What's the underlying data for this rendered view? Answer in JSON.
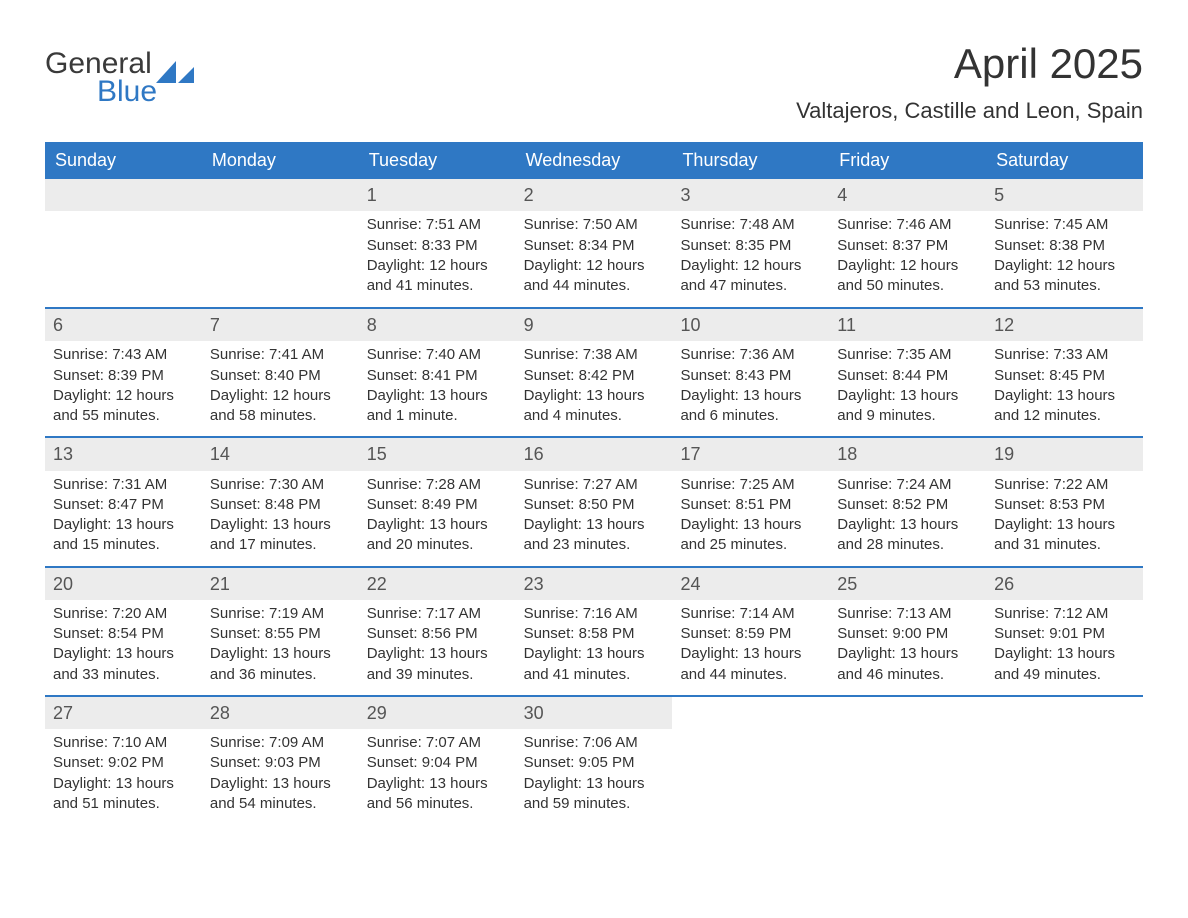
{
  "logo": {
    "text_general": "General",
    "text_blue": "Blue",
    "triangle_color": "#2f78c4"
  },
  "title": "April 2025",
  "location": "Valtajeros, Castille and Leon, Spain",
  "colors": {
    "header_bg": "#2f78c4",
    "header_text": "#ffffff",
    "daynum_bg": "#ececec",
    "row_border": "#2f78c4",
    "body_text": "#333333",
    "background": "#ffffff"
  },
  "day_names": [
    "Sunday",
    "Monday",
    "Tuesday",
    "Wednesday",
    "Thursday",
    "Friday",
    "Saturday"
  ],
  "weeks": [
    [
      null,
      null,
      {
        "n": "1",
        "sunrise": "Sunrise: 7:51 AM",
        "sunset": "Sunset: 8:33 PM",
        "d1": "Daylight: 12 hours",
        "d2": "and 41 minutes."
      },
      {
        "n": "2",
        "sunrise": "Sunrise: 7:50 AM",
        "sunset": "Sunset: 8:34 PM",
        "d1": "Daylight: 12 hours",
        "d2": "and 44 minutes."
      },
      {
        "n": "3",
        "sunrise": "Sunrise: 7:48 AM",
        "sunset": "Sunset: 8:35 PM",
        "d1": "Daylight: 12 hours",
        "d2": "and 47 minutes."
      },
      {
        "n": "4",
        "sunrise": "Sunrise: 7:46 AM",
        "sunset": "Sunset: 8:37 PM",
        "d1": "Daylight: 12 hours",
        "d2": "and 50 minutes."
      },
      {
        "n": "5",
        "sunrise": "Sunrise: 7:45 AM",
        "sunset": "Sunset: 8:38 PM",
        "d1": "Daylight: 12 hours",
        "d2": "and 53 minutes."
      }
    ],
    [
      {
        "n": "6",
        "sunrise": "Sunrise: 7:43 AM",
        "sunset": "Sunset: 8:39 PM",
        "d1": "Daylight: 12 hours",
        "d2": "and 55 minutes."
      },
      {
        "n": "7",
        "sunrise": "Sunrise: 7:41 AM",
        "sunset": "Sunset: 8:40 PM",
        "d1": "Daylight: 12 hours",
        "d2": "and 58 minutes."
      },
      {
        "n": "8",
        "sunrise": "Sunrise: 7:40 AM",
        "sunset": "Sunset: 8:41 PM",
        "d1": "Daylight: 13 hours",
        "d2": "and 1 minute."
      },
      {
        "n": "9",
        "sunrise": "Sunrise: 7:38 AM",
        "sunset": "Sunset: 8:42 PM",
        "d1": "Daylight: 13 hours",
        "d2": "and 4 minutes."
      },
      {
        "n": "10",
        "sunrise": "Sunrise: 7:36 AM",
        "sunset": "Sunset: 8:43 PM",
        "d1": "Daylight: 13 hours",
        "d2": "and 6 minutes."
      },
      {
        "n": "11",
        "sunrise": "Sunrise: 7:35 AM",
        "sunset": "Sunset: 8:44 PM",
        "d1": "Daylight: 13 hours",
        "d2": "and 9 minutes."
      },
      {
        "n": "12",
        "sunrise": "Sunrise: 7:33 AM",
        "sunset": "Sunset: 8:45 PM",
        "d1": "Daylight: 13 hours",
        "d2": "and 12 minutes."
      }
    ],
    [
      {
        "n": "13",
        "sunrise": "Sunrise: 7:31 AM",
        "sunset": "Sunset: 8:47 PM",
        "d1": "Daylight: 13 hours",
        "d2": "and 15 minutes."
      },
      {
        "n": "14",
        "sunrise": "Sunrise: 7:30 AM",
        "sunset": "Sunset: 8:48 PM",
        "d1": "Daylight: 13 hours",
        "d2": "and 17 minutes."
      },
      {
        "n": "15",
        "sunrise": "Sunrise: 7:28 AM",
        "sunset": "Sunset: 8:49 PM",
        "d1": "Daylight: 13 hours",
        "d2": "and 20 minutes."
      },
      {
        "n": "16",
        "sunrise": "Sunrise: 7:27 AM",
        "sunset": "Sunset: 8:50 PM",
        "d1": "Daylight: 13 hours",
        "d2": "and 23 minutes."
      },
      {
        "n": "17",
        "sunrise": "Sunrise: 7:25 AM",
        "sunset": "Sunset: 8:51 PM",
        "d1": "Daylight: 13 hours",
        "d2": "and 25 minutes."
      },
      {
        "n": "18",
        "sunrise": "Sunrise: 7:24 AM",
        "sunset": "Sunset: 8:52 PM",
        "d1": "Daylight: 13 hours",
        "d2": "and 28 minutes."
      },
      {
        "n": "19",
        "sunrise": "Sunrise: 7:22 AM",
        "sunset": "Sunset: 8:53 PM",
        "d1": "Daylight: 13 hours",
        "d2": "and 31 minutes."
      }
    ],
    [
      {
        "n": "20",
        "sunrise": "Sunrise: 7:20 AM",
        "sunset": "Sunset: 8:54 PM",
        "d1": "Daylight: 13 hours",
        "d2": "and 33 minutes."
      },
      {
        "n": "21",
        "sunrise": "Sunrise: 7:19 AM",
        "sunset": "Sunset: 8:55 PM",
        "d1": "Daylight: 13 hours",
        "d2": "and 36 minutes."
      },
      {
        "n": "22",
        "sunrise": "Sunrise: 7:17 AM",
        "sunset": "Sunset: 8:56 PM",
        "d1": "Daylight: 13 hours",
        "d2": "and 39 minutes."
      },
      {
        "n": "23",
        "sunrise": "Sunrise: 7:16 AM",
        "sunset": "Sunset: 8:58 PM",
        "d1": "Daylight: 13 hours",
        "d2": "and 41 minutes."
      },
      {
        "n": "24",
        "sunrise": "Sunrise: 7:14 AM",
        "sunset": "Sunset: 8:59 PM",
        "d1": "Daylight: 13 hours",
        "d2": "and 44 minutes."
      },
      {
        "n": "25",
        "sunrise": "Sunrise: 7:13 AM",
        "sunset": "Sunset: 9:00 PM",
        "d1": "Daylight: 13 hours",
        "d2": "and 46 minutes."
      },
      {
        "n": "26",
        "sunrise": "Sunrise: 7:12 AM",
        "sunset": "Sunset: 9:01 PM",
        "d1": "Daylight: 13 hours",
        "d2": "and 49 minutes."
      }
    ],
    [
      {
        "n": "27",
        "sunrise": "Sunrise: 7:10 AM",
        "sunset": "Sunset: 9:02 PM",
        "d1": "Daylight: 13 hours",
        "d2": "and 51 minutes."
      },
      {
        "n": "28",
        "sunrise": "Sunrise: 7:09 AM",
        "sunset": "Sunset: 9:03 PM",
        "d1": "Daylight: 13 hours",
        "d2": "and 54 minutes."
      },
      {
        "n": "29",
        "sunrise": "Sunrise: 7:07 AM",
        "sunset": "Sunset: 9:04 PM",
        "d1": "Daylight: 13 hours",
        "d2": "and 56 minutes."
      },
      {
        "n": "30",
        "sunrise": "Sunrise: 7:06 AM",
        "sunset": "Sunset: 9:05 PM",
        "d1": "Daylight: 13 hours",
        "d2": "and 59 minutes."
      },
      null,
      null,
      null
    ]
  ]
}
